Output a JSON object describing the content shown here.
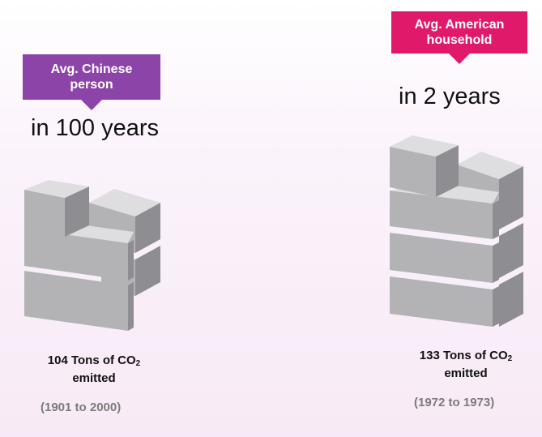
{
  "left": {
    "label_line1": "Avg. Chinese",
    "label_line2": "person",
    "label_color": "#8d44a8",
    "period": "in 100 years",
    "amount_prefix": "104 Tons of CO",
    "amount_sub": "2",
    "amount_suffix": "emitted",
    "range": "(1901 to 2000)",
    "co2_tons": 104
  },
  "right": {
    "label_line1": "Avg. American",
    "label_line2": "household",
    "label_color": "#e0196b",
    "period": "in 2 years",
    "amount_prefix": "133 Tons of CO",
    "amount_sub": "2",
    "amount_suffix": "emitted",
    "range": "(1972 to 1973)",
    "co2_tons": 133
  },
  "colors": {
    "block_top": "#dedee0",
    "block_front": "#b3b3b6",
    "block_side": "#8e8e92"
  },
  "icons": [
    "co2-block-icon"
  ]
}
